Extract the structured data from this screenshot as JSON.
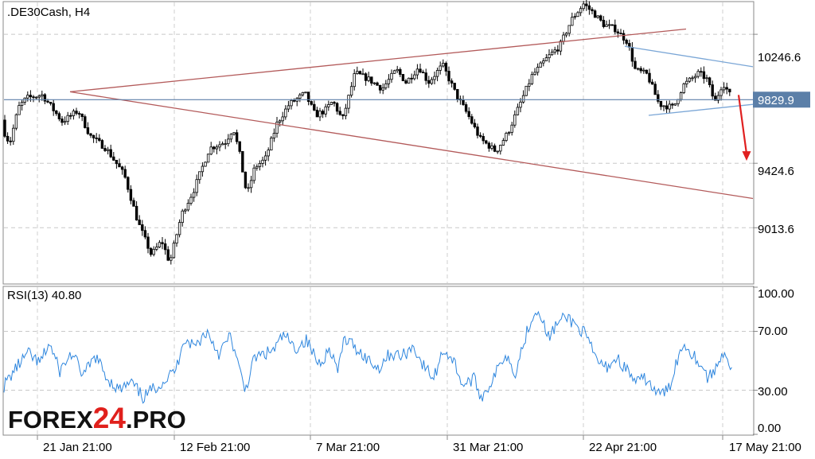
{
  "chart_data": [
    {
      "type": "candlestick",
      "title": ".DE30Cash, H4",
      "y_ticks": [
        {
          "label": "10246.6",
          "value": 10246.6
        },
        {
          "label": "9424.6",
          "value": 9424.6
        },
        {
          "label": "9013.6",
          "value": 9013.6
        }
      ],
      "ylim": [
        8660,
        10450
      ],
      "current_price": {
        "label": "9829.9",
        "value": 9829.9
      },
      "x_ticks": [
        "21 Jan 21:00",
        "12 Feb 21:00",
        "7 Mar 21:00",
        "31 Mar 21:00",
        "22 Apr 21:00",
        "17 May 21:00"
      ],
      "grid": true,
      "price_anchors": [
        [
          0,
          9700
        ],
        [
          14,
          9550
        ],
        [
          25,
          9780
        ],
        [
          35,
          9840
        ],
        [
          55,
          9860
        ],
        [
          80,
          9690
        ],
        [
          100,
          9760
        ],
        [
          115,
          9600
        ],
        [
          135,
          9520
        ],
        [
          158,
          9350
        ],
        [
          175,
          9050
        ],
        [
          192,
          8840
        ],
        [
          205,
          8930
        ],
        [
          215,
          8790
        ],
        [
          230,
          9100
        ],
        [
          245,
          9250
        ],
        [
          265,
          9520
        ],
        [
          285,
          9560
        ],
        [
          295,
          9650
        ],
        [
          303,
          9480
        ],
        [
          312,
          9220
        ],
        [
          322,
          9400
        ],
        [
          335,
          9450
        ],
        [
          350,
          9680
        ],
        [
          365,
          9800
        ],
        [
          385,
          9870
        ],
        [
          398,
          9730
        ],
        [
          410,
          9760
        ],
        [
          420,
          9820
        ],
        [
          432,
          9700
        ],
        [
          440,
          9850
        ],
        [
          448,
          10000
        ],
        [
          465,
          9960
        ],
        [
          482,
          9900
        ],
        [
          500,
          10020
        ],
        [
          512,
          9940
        ],
        [
          528,
          10040
        ],
        [
          540,
          9940
        ],
        [
          558,
          10050
        ],
        [
          575,
          9860
        ],
        [
          590,
          9730
        ],
        [
          605,
          9580
        ],
        [
          625,
          9500
        ],
        [
          640,
          9620
        ],
        [
          660,
          9860
        ],
        [
          670,
          9980
        ],
        [
          690,
          10100
        ],
        [
          705,
          10170
        ],
        [
          720,
          10340
        ],
        [
          735,
          10440
        ],
        [
          748,
          10380
        ],
        [
          760,
          10310
        ],
        [
          775,
          10280
        ],
        [
          790,
          10200
        ],
        [
          800,
          10020
        ],
        [
          815,
          9990
        ],
        [
          830,
          9800
        ],
        [
          848,
          9780
        ],
        [
          860,
          9920
        ],
        [
          870,
          9960
        ],
        [
          880,
          10000
        ],
        [
          890,
          9960
        ],
        [
          900,
          9810
        ],
        [
          910,
          9940
        ],
        [
          920,
          9850
        ]
      ],
      "trendlines": [
        {
          "name": "upper-channel",
          "from": [
            88,
            9880
          ],
          "to": [
            862,
            10280
          ],
          "color": "#b35a5a"
        },
        {
          "name": "lower-channel",
          "from": [
            88,
            9880
          ],
          "to": [
            946,
            9200
          ],
          "color": "#b35a5a"
        },
        {
          "name": "flag-upper",
          "from": [
            785,
            10170
          ],
          "to": [
            946,
            10040
          ],
          "color": "#7aa6d6"
        },
        {
          "name": "flag-lower",
          "from": [
            815,
            9730
          ],
          "to": [
            946,
            9800
          ],
          "color": "#7aa6d6"
        }
      ],
      "forecast_arrow": {
        "from": [
          928,
          9860
        ],
        "to": [
          938,
          9440
        ],
        "color": "#e02020"
      }
    },
    {
      "type": "line",
      "title": "RSI(13) 40.80",
      "y_ticks": [
        {
          "label": "100.00",
          "value": 100
        },
        {
          "label": "70.00",
          "value": 70
        },
        {
          "label": "30.00",
          "value": 30
        },
        {
          "label": "0.00",
          "value": 0
        }
      ],
      "ylim": [
        0,
        100
      ],
      "levels": [
        70,
        30
      ],
      "series": [
        {
          "color": "#2e86de",
          "anchors": [
            [
              5,
              33
            ],
            [
              20,
              45
            ],
            [
              35,
              55
            ],
            [
              50,
              48
            ],
            [
              62,
              62
            ],
            [
              75,
              43
            ],
            [
              90,
              55
            ],
            [
              105,
              40
            ],
            [
              120,
              53
            ],
            [
              135,
              38
            ],
            [
              150,
              30
            ],
            [
              165,
              35
            ],
            [
              180,
              25
            ],
            [
              195,
              32
            ],
            [
              210,
              38
            ],
            [
              222,
              45
            ],
            [
              230,
              65
            ],
            [
              245,
              60
            ],
            [
              260,
              70
            ],
            [
              275,
              55
            ],
            [
              290,
              67
            ],
            [
              300,
              45
            ],
            [
              308,
              30
            ],
            [
              320,
              52
            ],
            [
              335,
              55
            ],
            [
              345,
              58
            ],
            [
              357,
              68
            ],
            [
              370,
              58
            ],
            [
              385,
              64
            ],
            [
              400,
              48
            ],
            [
              415,
              58
            ],
            [
              425,
              42
            ],
            [
              432,
              65
            ],
            [
              445,
              60
            ],
            [
              460,
              52
            ],
            [
              475,
              45
            ],
            [
              490,
              55
            ],
            [
              505,
              53
            ],
            [
              520,
              60
            ],
            [
              530,
              48
            ],
            [
              545,
              38
            ],
            [
              557,
              58
            ],
            [
              570,
              50
            ],
            [
              582,
              33
            ],
            [
              595,
              38
            ],
            [
              605,
              25
            ],
            [
              620,
              38
            ],
            [
              635,
              55
            ],
            [
              648,
              42
            ],
            [
              655,
              57
            ],
            [
              668,
              80
            ],
            [
              678,
              85
            ],
            [
              688,
              65
            ],
            [
              700,
              75
            ],
            [
              712,
              80
            ],
            [
              722,
              75
            ],
            [
              735,
              68
            ],
            [
              748,
              52
            ],
            [
              760,
              45
            ],
            [
              775,
              52
            ],
            [
              790,
              42
            ],
            [
              800,
              35
            ],
            [
              812,
              38
            ],
            [
              826,
              27
            ],
            [
              840,
              30
            ],
            [
              850,
              50
            ],
            [
              860,
              62
            ],
            [
              870,
              55
            ],
            [
              880,
              48
            ],
            [
              890,
              38
            ],
            [
              900,
              45
            ],
            [
              910,
              58
            ],
            [
              920,
              41
            ]
          ]
        }
      ]
    }
  ],
  "brand": {
    "pre": "FOREX",
    "highlight": "24",
    "post": ".PRO"
  }
}
